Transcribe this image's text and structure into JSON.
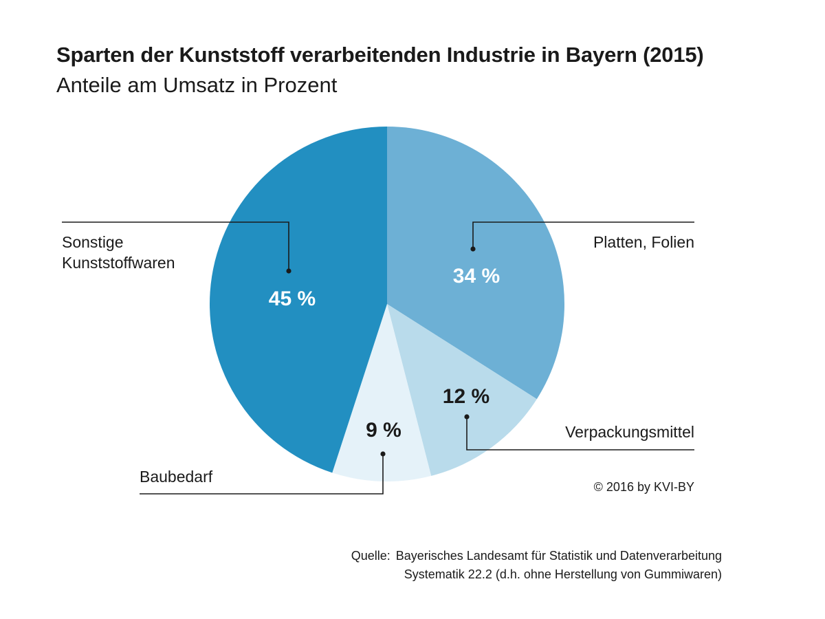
{
  "chart_data": {
    "type": "pie",
    "title": "Sparten der Kunststoff verarbeitenden Industrie in Bayern (2015)",
    "subtitle": "Anteile am Umsatz in Prozent",
    "unit": "%",
    "slices": [
      {
        "label": "Platten, Folien",
        "value": 34,
        "value_label": "34 %",
        "color": "#6db0d5",
        "text_color": "#ffffff"
      },
      {
        "label": "Verpackungsmittel",
        "value": 12,
        "value_label": "12 %",
        "color": "#b9dbeb",
        "text_color": "#1a1a1a"
      },
      {
        "label": "Baubedarf",
        "value": 9,
        "value_label": "9 %",
        "color": "#e5f2f9",
        "text_color": "#1a1a1a"
      },
      {
        "label": "Sonstige Kunststoffwaren",
        "value": 45,
        "value_label": "45 %",
        "color": "#228fc1",
        "text_color": "#ffffff"
      }
    ],
    "start": "12 o'clock",
    "direction": "clockwise"
  },
  "footer": {
    "copyright": "© 2016 by KVI-BY",
    "source_label": "Quelle:",
    "source_line1": "Bayerisches Landesamt für Statistik und Datenverarbeitung",
    "source_line2": "Systematik 22.2 (d.h. ohne Herstellung von Gummiwaren)"
  }
}
